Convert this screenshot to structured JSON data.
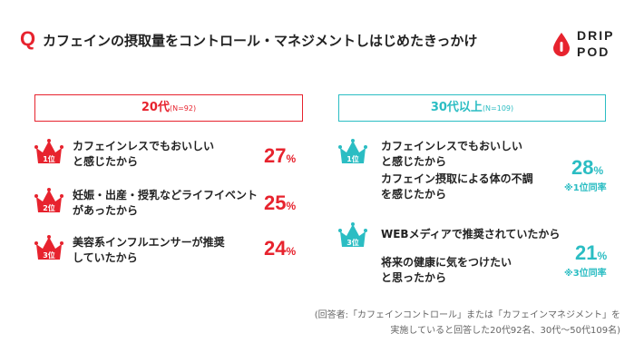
{
  "header": {
    "q_mark": "Q",
    "question": "カフェインの摂取量をコントロール・マネジメントしはじめたきっかけ",
    "logo_line1": "DRIP",
    "logo_line2": "POD"
  },
  "colors": {
    "accent_red": "#e7232e",
    "accent_teal": "#2bbdc3"
  },
  "group20": {
    "title": "20代",
    "sample": "(N=92)",
    "items": [
      {
        "rank": "1位",
        "line1": "カフェインレスでもおいしい",
        "line2": "と感じたから",
        "pct": "27",
        "unit": "%"
      },
      {
        "rank": "2位",
        "line1": "妊娠・出産・授乳などライフイベント",
        "line2": "があったから",
        "pct": "25",
        "unit": "%"
      },
      {
        "rank": "3位",
        "line1": "美容系インフルエンサーが推奨",
        "line2": "していたから",
        "pct": "24",
        "unit": "%"
      }
    ]
  },
  "group30": {
    "title": "30代以上",
    "sample": "(N=109)",
    "items": [
      {
        "rank": "1位",
        "line1": "カフェインレスでもおいしい",
        "line2": "と感じたから",
        "line3": "カフェイン摂取による体の不調",
        "line4": "を感じたから",
        "pct": "28",
        "unit": "%",
        "note": "※1位同率"
      },
      {
        "rank": "3位",
        "line1": "WEBメディアで推奨されていたから",
        "line2": "将来の健康に気をつけたい",
        "line3": "と思ったから",
        "pct": "21",
        "unit": "%",
        "note": "※3位同率"
      }
    ]
  },
  "footnote": {
    "line1": "(回答者:「カフェインコントロール」または「カフェインマネジメント」を",
    "line2": "実施していると回答した20代92名、30代〜50代109名)"
  }
}
